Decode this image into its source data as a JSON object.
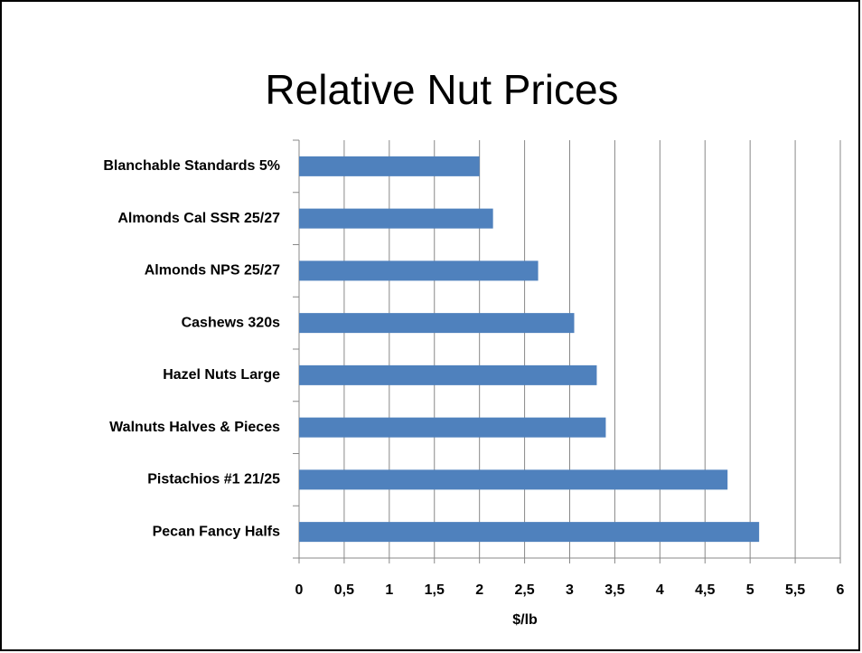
{
  "chart_data": {
    "type": "bar",
    "orientation": "horizontal",
    "title": "Relative Nut Prices",
    "x_label": "$/lb",
    "categories": [
      "Blanchable Standards 5%",
      "Almonds Cal SSR 25/27",
      "Almonds NPS 25/27",
      "Cashews 320s",
      "Hazel Nuts Large",
      "Walnuts Halves & Pieces",
      "Pistachios #1 21/25",
      "Pecan Fancy Halfs"
    ],
    "values": [
      2.0,
      2.15,
      2.65,
      3.05,
      3.3,
      3.4,
      4.75,
      5.1
    ],
    "color": "#4f81bd",
    "xlim": [
      0,
      6
    ],
    "xticks": [
      0,
      {
        "value": 0.5,
        "label": "0,5"
      },
      1,
      {
        "value": 1.5,
        "label": "1,5"
      },
      2,
      {
        "value": 2.5,
        "label": "2,5"
      },
      3,
      {
        "value": 3.5,
        "label": "3,5"
      },
      4,
      {
        "value": 4.5,
        "label": "4,5"
      },
      5,
      {
        "value": 5.5,
        "label": "5,5"
      },
      6
    ],
    "grid": true
  }
}
